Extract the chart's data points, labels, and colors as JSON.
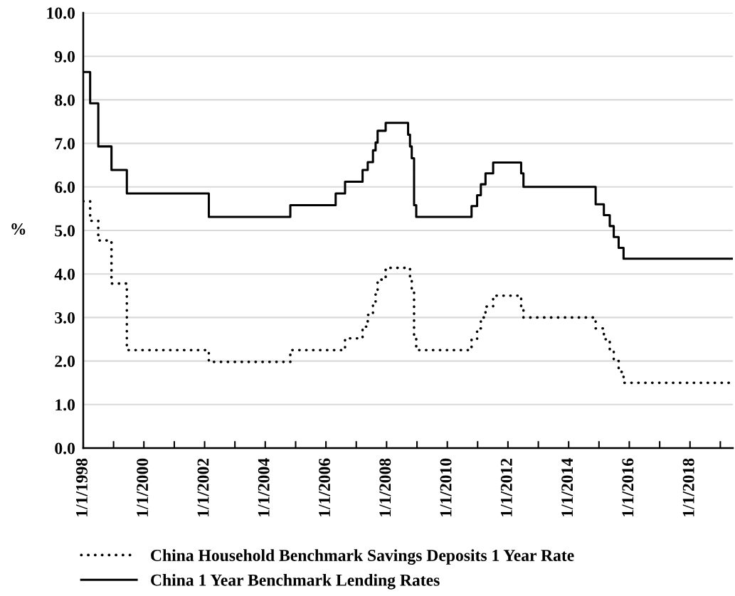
{
  "chart_data": {
    "type": "step",
    "ylabel": "%",
    "ylim": [
      0,
      10
    ],
    "yticks": [
      {
        "value": 0,
        "label": "0.0"
      },
      {
        "value": 1,
        "label": "1.0"
      },
      {
        "value": 2,
        "label": "2.0"
      },
      {
        "value": 3,
        "label": "3.0"
      },
      {
        "value": 4,
        "label": "4.0"
      },
      {
        "value": 5,
        "label": "5.0"
      },
      {
        "value": 6,
        "label": "6.0"
      },
      {
        "value": 7,
        "label": "7.0"
      },
      {
        "value": 8,
        "label": "8.0"
      },
      {
        "value": 9,
        "label": "9.0"
      },
      {
        "value": 10,
        "label": "10.0"
      }
    ],
    "xlim": [
      "1998-01-01",
      "2019-06-01"
    ],
    "xticks": [
      {
        "value": "1998-01-01",
        "label": "1/1/1998"
      },
      {
        "value": "1999-01-01",
        "label": null
      },
      {
        "value": "2000-01-01",
        "label": "1/1/2000"
      },
      {
        "value": "2001-01-01",
        "label": null
      },
      {
        "value": "2002-01-01",
        "label": "1/1/2002"
      },
      {
        "value": "2003-01-01",
        "label": null
      },
      {
        "value": "2004-01-01",
        "label": "1/1/2004"
      },
      {
        "value": "2005-01-01",
        "label": null
      },
      {
        "value": "2006-01-01",
        "label": "1/1/2006"
      },
      {
        "value": "2007-01-01",
        "label": null
      },
      {
        "value": "2008-01-01",
        "label": "1/1/2008"
      },
      {
        "value": "2009-01-01",
        "label": null
      },
      {
        "value": "2010-01-01",
        "label": "1/1/2010"
      },
      {
        "value": "2011-01-01",
        "label": null
      },
      {
        "value": "2012-01-01",
        "label": "1/1/2012"
      },
      {
        "value": "2013-01-01",
        "label": null
      },
      {
        "value": "2014-01-01",
        "label": "1/1/2014"
      },
      {
        "value": "2015-01-01",
        "label": null
      },
      {
        "value": "2016-01-01",
        "label": "1/1/2016"
      },
      {
        "value": "2017-01-01",
        "label": null
      },
      {
        "value": "2018-01-01",
        "label": "1/1/2018"
      },
      {
        "value": "2019-01-01",
        "label": null
      }
    ],
    "grid": "y",
    "legend": "bottom",
    "series": [
      {
        "name": "China Household Benchmark Savings Deposits 1 Year Rate",
        "color": "#000000",
        "line_style": "dotted",
        "x": [
          "1998-01-01",
          "1998-03-25",
          "1998-07-01",
          "1998-12-07",
          "1999-06-10",
          "2002-02-21",
          "2004-10-29",
          "2006-08-19",
          "2007-03-18",
          "2007-05-19",
          "2007-07-21",
          "2007-08-22",
          "2007-09-15",
          "2007-12-21",
          "2008-10-09",
          "2008-10-30",
          "2008-11-27",
          "2008-12-23",
          "2010-10-20",
          "2010-12-26",
          "2011-02-09",
          "2011-04-06",
          "2011-07-07",
          "2012-06-08",
          "2012-07-06",
          "2014-11-22",
          "2015-03-01",
          "2015-05-11",
          "2015-06-28",
          "2015-08-26",
          "2015-10-24",
          "2019-06-01"
        ],
        "values": [
          5.67,
          5.22,
          4.77,
          3.78,
          2.25,
          1.98,
          2.25,
          2.52,
          2.79,
          3.06,
          3.33,
          3.6,
          3.87,
          4.14,
          3.87,
          3.6,
          2.52,
          2.25,
          2.5,
          2.75,
          3.0,
          3.25,
          3.5,
          3.25,
          3.0,
          2.75,
          2.5,
          2.25,
          2.0,
          1.75,
          1.5,
          1.5
        ]
      },
      {
        "name": "China 1 Year Benchmark Lending Rates",
        "color": "#000000",
        "line_style": "solid",
        "x": [
          "1998-01-01",
          "1998-03-25",
          "1998-07-01",
          "1998-12-07",
          "1999-06-10",
          "2002-02-21",
          "2004-10-29",
          "2006-04-28",
          "2006-08-19",
          "2007-03-18",
          "2007-05-19",
          "2007-07-21",
          "2007-08-22",
          "2007-09-15",
          "2007-12-21",
          "2008-09-16",
          "2008-10-09",
          "2008-10-30",
          "2008-11-27",
          "2008-12-23",
          "2010-10-20",
          "2010-12-26",
          "2011-02-09",
          "2011-04-06",
          "2011-07-07",
          "2012-06-08",
          "2012-07-06",
          "2014-11-22",
          "2015-03-01",
          "2015-05-11",
          "2015-06-28",
          "2015-08-26",
          "2015-10-24",
          "2019-06-01"
        ],
        "values": [
          8.64,
          7.92,
          6.93,
          6.39,
          5.85,
          5.31,
          5.58,
          5.85,
          6.12,
          6.39,
          6.57,
          6.84,
          7.02,
          7.29,
          7.47,
          7.2,
          6.93,
          6.66,
          5.58,
          5.31,
          5.56,
          5.81,
          6.06,
          6.31,
          6.56,
          6.31,
          6.0,
          5.6,
          5.35,
          5.1,
          4.85,
          4.6,
          4.35,
          4.35
        ]
      }
    ]
  }
}
